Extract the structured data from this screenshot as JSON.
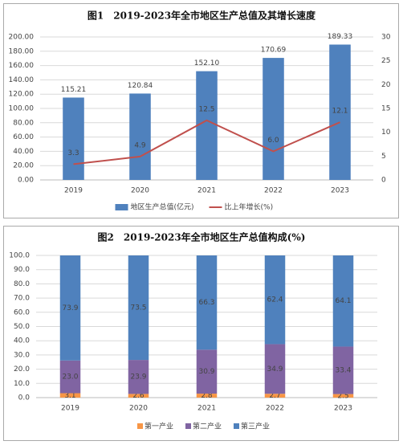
{
  "chart_data": [
    {
      "type": "combo",
      "title": "图1　2019-2023年全市地区生产总值及其增长速度",
      "categories": [
        "2019",
        "2020",
        "2021",
        "2022",
        "2023"
      ],
      "series": [
        {
          "name": "地区生产总值(亿元)",
          "color": "#4f81bd",
          "type": "bar",
          "axis": "y",
          "values": [
            115.21,
            120.84,
            152.1,
            170.69,
            189.33
          ],
          "value_labels": [
            "115.21",
            "120.84",
            "152.10",
            "170.69",
            "189.33"
          ]
        },
        {
          "name": "比上年增长(%)",
          "color": "#c0504d",
          "type": "line",
          "axis": "y2",
          "values": [
            3.3,
            4.9,
            12.5,
            6.0,
            12.1
          ],
          "value_labels": [
            "3.3",
            "4.9",
            "12.5",
            "6.0",
            "12.1"
          ]
        }
      ],
      "ylim": [
        0,
        200
      ],
      "yticks": [
        {
          "value": 0,
          "label": "0.00"
        },
        {
          "value": 20,
          "label": "20.00"
        },
        {
          "value": 40,
          "label": "40.00"
        },
        {
          "value": 60,
          "label": "60.00"
        },
        {
          "value": 80,
          "label": "80.00"
        },
        {
          "value": 100,
          "label": "100.00"
        },
        {
          "value": 120,
          "label": "120.00"
        },
        {
          "value": 140,
          "label": "140.00"
        },
        {
          "value": 160,
          "label": "160.00"
        },
        {
          "value": 180,
          "label": "180.00"
        },
        {
          "value": 200,
          "label": "200.00"
        }
      ],
      "y2lim": [
        0,
        30
      ],
      "y2ticks": [
        0,
        5,
        10,
        15,
        20,
        25,
        30
      ],
      "legend": "bottom"
    },
    {
      "type": "stacked_bar",
      "title": "图2　2019-2023年全市地区生产总值构成(%)",
      "categories": [
        "2019",
        "2020",
        "2021",
        "2022",
        "2023"
      ],
      "series": [
        {
          "name": "第一产业",
          "color": "#f79646",
          "values": [
            3.1,
            2.6,
            2.8,
            2.7,
            2.5
          ],
          "value_labels": [
            "3.1",
            "2.6",
            "2.8",
            "2.7",
            "2.5"
          ]
        },
        {
          "name": "第二产业",
          "color": "#8064a2",
          "values": [
            23.0,
            23.9,
            30.9,
            34.9,
            33.4
          ],
          "value_labels": [
            "23.0",
            "23.9",
            "30.9",
            "34.9",
            "33.4"
          ]
        },
        {
          "name": "第三产业",
          "color": "#4f81bd",
          "values": [
            73.9,
            73.5,
            66.3,
            62.4,
            64.1
          ],
          "value_labels": [
            "73.9",
            "73.5",
            "66.3",
            "62.4",
            "64.1"
          ]
        }
      ],
      "ylim": [
        0,
        100
      ],
      "yticks": [
        {
          "value": 0,
          "label": "0.0"
        },
        {
          "value": 10,
          "label": "10.0"
        },
        {
          "value": 20,
          "label": "20.0"
        },
        {
          "value": 30,
          "label": "30.0"
        },
        {
          "value": 40,
          "label": "40.0"
        },
        {
          "value": 50,
          "label": "50.0"
        },
        {
          "value": 60,
          "label": "60.0"
        },
        {
          "value": 70,
          "label": "70.0"
        },
        {
          "value": 80,
          "label": "80.0"
        },
        {
          "value": 90,
          "label": "90.0"
        },
        {
          "value": 100,
          "label": "100.0"
        }
      ],
      "legend": "bottom"
    }
  ]
}
